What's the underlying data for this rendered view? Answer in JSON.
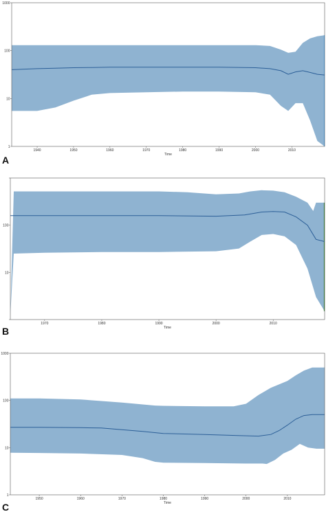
{
  "chart_data": [
    {
      "type": "area",
      "panel_label": "A",
      "title": "",
      "xlabel": "Time",
      "ylabel": "",
      "y_scale": "log",
      "ylim": [
        1,
        1000
      ],
      "xlim": [
        1933,
        2019
      ],
      "y_ticks": [
        "1",
        "10",
        "100",
        "1000"
      ],
      "x_ticks": [
        1940,
        1950,
        1960,
        1970,
        1980,
        1990,
        2000,
        2010
      ],
      "x_tick_labels": [
        "1940",
        "1950",
        "1960",
        "1970",
        "1980",
        "1990",
        "2000",
        "2010"
      ],
      "grid": false,
      "band_color": "#8fb3d1",
      "line_color": "#2b5e97",
      "edge_color": "#5aa8e6",
      "series": [
        {
          "x": [
            1933,
            1940,
            1945,
            1950,
            1955,
            1960,
            1970,
            1980,
            1990,
            2000,
            2004,
            2007,
            2009,
            2011,
            2013,
            2015,
            2017,
            2019
          ],
          "values": [
            40,
            42,
            43,
            44,
            44.5,
            45,
            45,
            45,
            45,
            44,
            42,
            38,
            32,
            36,
            38,
            35,
            32,
            31
          ]
        },
        {
          "x": [
            1933,
            1940,
            1945,
            1950,
            1955,
            1960,
            1970,
            1980,
            1990,
            2000,
            2004,
            2007,
            2009,
            2011,
            2013,
            2015,
            2017,
            2019
          ],
          "values": [
            5.5,
            5.5,
            6.5,
            9,
            12,
            13,
            13.5,
            14,
            14,
            13.5,
            12,
            7,
            5.5,
            8,
            8,
            3.5,
            1.3,
            1
          ]
        },
        {
          "x": [
            1933,
            1940,
            1945,
            1950,
            1955,
            1960,
            1970,
            1980,
            1990,
            2000,
            2004,
            2007,
            2009,
            2011,
            2013,
            2015,
            2017,
            2019
          ],
          "values": [
            130,
            130,
            130,
            130,
            130,
            130,
            130,
            130,
            130,
            130,
            125,
            105,
            90,
            95,
            145,
            180,
            200,
            210
          ]
        }
      ]
    },
    {
      "type": "area",
      "panel_label": "B",
      "title": "",
      "xlabel": "Time",
      "ylabel": "",
      "y_scale": "log",
      "ylim": [
        0.1,
        100
      ],
      "xlim": [
        1964,
        2019
      ],
      "y_ticks": [
        "",
        "10",
        "100"
      ],
      "x_ticks": [
        1970,
        1980,
        1990,
        2000,
        2010
      ],
      "x_tick_labels": [
        "1970",
        "1980",
        "1990",
        "2000",
        "2010"
      ],
      "grid": false,
      "band_color": "#8fb3d1",
      "line_color": "#2b5e97",
      "edge_color": "#3d8a3d",
      "series": [
        {
          "x": [
            1964,
            1970,
            1980,
            1990,
            2000,
            2005,
            2008,
            2010,
            2012,
            2014,
            2016,
            2017.5,
            2019
          ],
          "values": [
            16,
            16,
            16,
            16,
            15.5,
            16.5,
            19,
            19.5,
            19,
            15,
            10,
            5,
            4.5
          ]
        },
        {
          "x": [
            1964,
            1964.6,
            1970,
            1980,
            1990,
            2000,
            2004,
            2006,
            2008,
            2010,
            2012,
            2014,
            2016,
            2017.5,
            2019
          ],
          "values": [
            0.12,
            2.5,
            2.6,
            2.7,
            2.7,
            2.8,
            3.2,
            4.5,
            6.2,
            6.5,
            5.8,
            3.8,
            1.2,
            0.3,
            0.15
          ]
        },
        {
          "x": [
            1964,
            1964.6,
            1970,
            1980,
            1990,
            1995,
            2000,
            2004,
            2006,
            2008,
            2010,
            2012,
            2014,
            2016,
            2017,
            2017.5,
            2019
          ],
          "values": [
            0.12,
            52,
            52,
            52,
            52,
            50,
            45,
            47,
            52,
            55,
            54,
            50,
            40,
            30,
            20,
            30,
            30
          ]
        }
      ]
    },
    {
      "type": "area",
      "panel_label": "C",
      "title": "",
      "xlabel": "Time",
      "ylabel": "",
      "y_scale": "log",
      "ylim": [
        1,
        1000
      ],
      "xlim": [
        1943,
        2019
      ],
      "y_ticks": [
        "1",
        "10",
        "100",
        "1000"
      ],
      "x_ticks": [
        1950,
        1960,
        1970,
        1980,
        1990,
        2000,
        2010
      ],
      "x_tick_labels": [
        "1950",
        "1960",
        "1970",
        "1980",
        "1990",
        "2000",
        "2010"
      ],
      "grid": false,
      "band_color": "#8fb3d1",
      "line_color": "#2b5e97",
      "edge_color": "#8fb3d1",
      "series": [
        {
          "x": [
            1943,
            1950,
            1960,
            1965,
            1970,
            1975,
            1980,
            1990,
            1998,
            2003,
            2006,
            2008,
            2010,
            2012,
            2014,
            2016,
            2019
          ],
          "values": [
            27,
            27,
            26.5,
            26,
            24,
            22,
            20,
            19,
            18,
            17.5,
            19,
            23,
            30,
            40,
            48,
            50,
            50
          ]
        },
        {
          "x": [
            1943,
            1950,
            1960,
            1970,
            1975,
            1978,
            1980,
            1990,
            2000,
            2004,
            2005,
            2007,
            2009,
            2011,
            2013,
            2015,
            2017,
            2019
          ],
          "values": [
            7.8,
            7.7,
            7.5,
            7.0,
            6.0,
            5.0,
            4.8,
            4.7,
            4.6,
            4.6,
            4.5,
            5.5,
            7.5,
            9.0,
            12,
            10,
            9.5,
            9.5
          ]
        },
        {
          "x": [
            1943,
            1950,
            1960,
            1970,
            1978,
            1980,
            1990,
            1997,
            2000,
            2003,
            2006,
            2008,
            2010,
            2012,
            2014,
            2016,
            2019
          ],
          "values": [
            110,
            110,
            105,
            90,
            78,
            77,
            75,
            75,
            85,
            130,
            185,
            220,
            260,
            340,
            430,
            500,
            500
          ]
        }
      ]
    }
  ]
}
